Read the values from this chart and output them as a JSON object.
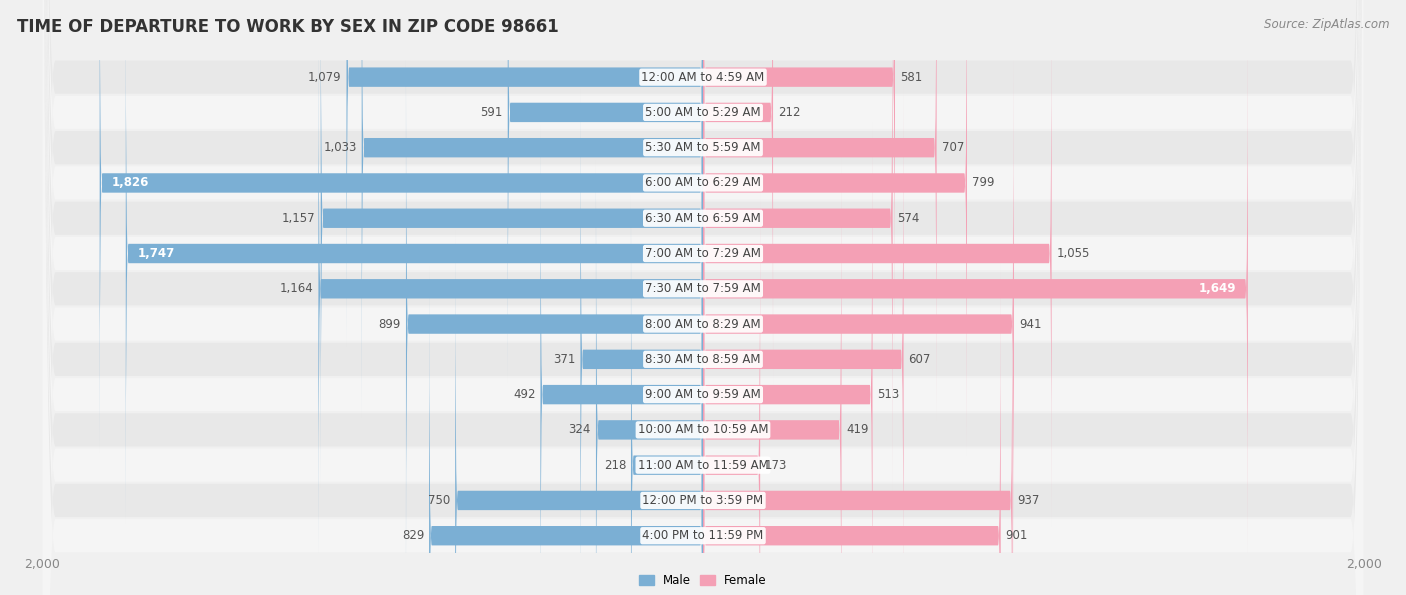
{
  "title": "TIME OF DEPARTURE TO WORK BY SEX IN ZIP CODE 98661",
  "source": "Source: ZipAtlas.com",
  "categories": [
    "12:00 AM to 4:59 AM",
    "5:00 AM to 5:29 AM",
    "5:30 AM to 5:59 AM",
    "6:00 AM to 6:29 AM",
    "6:30 AM to 6:59 AM",
    "7:00 AM to 7:29 AM",
    "7:30 AM to 7:59 AM",
    "8:00 AM to 8:29 AM",
    "8:30 AM to 8:59 AM",
    "9:00 AM to 9:59 AM",
    "10:00 AM to 10:59 AM",
    "11:00 AM to 11:59 AM",
    "12:00 PM to 3:59 PM",
    "4:00 PM to 11:59 PM"
  ],
  "male_values": [
    1079,
    591,
    1033,
    1826,
    1157,
    1747,
    1164,
    899,
    371,
    492,
    324,
    218,
    750,
    829
  ],
  "female_values": [
    581,
    212,
    707,
    799,
    574,
    1055,
    1649,
    941,
    607,
    513,
    419,
    173,
    937,
    901
  ],
  "male_color": "#7bafd4",
  "female_color": "#f4a0b5",
  "male_color_dark": "#5b9ec9",
  "female_color_dark": "#e8607a",
  "bar_height": 0.55,
  "xlim": 2000,
  "bg_color": "#f0f0f0",
  "row_bg_even": "#e8e8e8",
  "row_bg_odd": "#f5f5f5",
  "title_fontsize": 12,
  "label_fontsize": 8.5,
  "value_fontsize": 8.5,
  "tick_fontsize": 9,
  "source_fontsize": 8.5,
  "cat_label_threshold": 300,
  "male_inside_threshold": 200,
  "female_inside_threshold": 200
}
